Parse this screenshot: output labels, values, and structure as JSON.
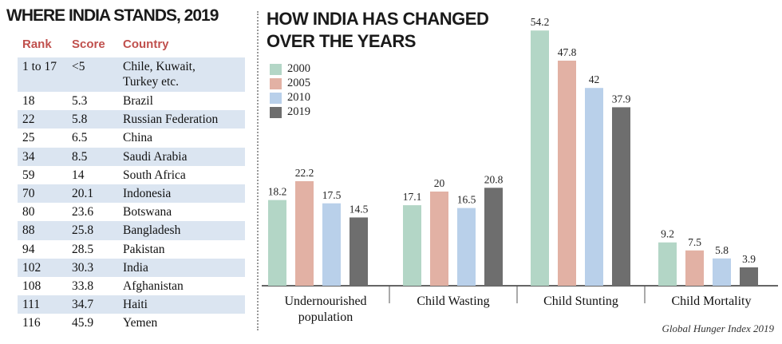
{
  "left_table": {
    "title": "WHERE INDIA STANDS, 2019",
    "headers": {
      "rank": "Rank",
      "score": "Score",
      "country": "Country"
    },
    "rows": [
      {
        "rank": "1 to 17",
        "score": "<5",
        "country": "Chile, Kuwait,",
        "country2": "Turkey etc."
      },
      {
        "rank": "18",
        "score": "5.3",
        "country": "Brazil"
      },
      {
        "rank": "22",
        "score": "5.8",
        "country": "Russian Federation"
      },
      {
        "rank": "25",
        "score": "6.5",
        "country": "China"
      },
      {
        "rank": "34",
        "score": "8.5",
        "country": "Saudi Arabia"
      },
      {
        "rank": "59",
        "score": "14",
        "country": "South Africa"
      },
      {
        "rank": "70",
        "score": "20.1",
        "country": "Indonesia"
      },
      {
        "rank": "80",
        "score": "23.6",
        "country": "Botswana"
      },
      {
        "rank": "88",
        "score": "25.8",
        "country": "Bangladesh"
      },
      {
        "rank": "94",
        "score": "28.5",
        "country": "Pakistan"
      },
      {
        "rank": "102",
        "score": "30.3",
        "country": "India"
      },
      {
        "rank": "108",
        "score": "33.8",
        "country": "Afghanistan"
      },
      {
        "rank": "111",
        "score": "34.7",
        "country": "Haiti"
      },
      {
        "rank": "116",
        "score": "45.9",
        "country": "Yemen"
      }
    ]
  },
  "chart_title_line1": "HOW INDIA HAS CHANGED",
  "chart_title_line2": "OVER THE YEARS",
  "source": "Global Hunger Index 2019",
  "colors": {
    "row_shade": "#dbe5f1",
    "header_red": "#c0504d",
    "series": [
      "#b3d6c6",
      "#e2b1a4",
      "#b9d0ea",
      "#6e6e6e"
    ]
  },
  "chart_data": {
    "type": "bar",
    "title": "HOW INDIA HAS CHANGED OVER THE YEARS",
    "categories": [
      "Undernourished population",
      "Child Wasting",
      "Child Stunting",
      "Child Mortality"
    ],
    "category_lines": [
      [
        "Undernourished",
        "population"
      ],
      [
        "Child Wasting"
      ],
      [
        "Child Stunting"
      ],
      [
        "Child Mortality"
      ]
    ],
    "series": [
      {
        "name": "2000",
        "values": [
          18.2,
          17.1,
          54.2,
          9.2
        ]
      },
      {
        "name": "2005",
        "values": [
          22.2,
          20,
          47.8,
          7.5
        ]
      },
      {
        "name": "2010",
        "values": [
          17.5,
          16.5,
          42,
          5.8
        ]
      },
      {
        "name": "2019",
        "values": [
          14.5,
          20.8,
          37.9,
          3.9
        ]
      }
    ],
    "xlabel": "",
    "ylabel": "",
    "ylim": [
      0,
      55
    ],
    "grid": false,
    "legend_position": "top-left"
  }
}
